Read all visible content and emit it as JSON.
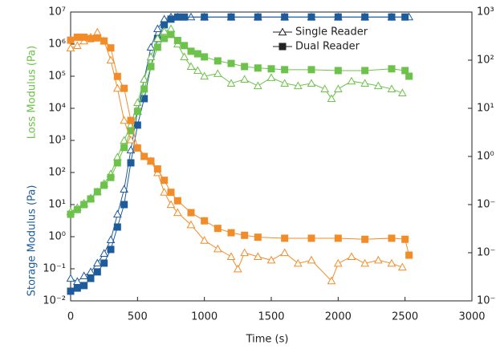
{
  "chart_data": {
    "type": "line",
    "x_label": "Time (s)",
    "y_labels": [
      "Storage Modulus (Pa)",
      "Loss Modulus (Pa)"
    ],
    "y_label_colors": [
      "#1e5b9b",
      "#6cc24a"
    ],
    "xlim": [
      0,
      3000
    ],
    "xticks": [
      0,
      500,
      1000,
      1500,
      2000,
      2500,
      3000
    ],
    "ylim": [
      0.01,
      10000000
    ],
    "log_y": true,
    "yticks": [
      {
        "value": 0.01,
        "label": "10⁻²"
      },
      {
        "value": 0.1,
        "label": "10⁻¹"
      },
      {
        "value": 1,
        "label": "10⁰"
      },
      {
        "value": 10,
        "label": "10¹"
      },
      {
        "value": 100,
        "label": "10²"
      },
      {
        "value": 1000,
        "label": "10³"
      },
      {
        "value": 10000,
        "label": "10⁴"
      },
      {
        "value": 100000,
        "label": "10⁵"
      },
      {
        "value": 1000000,
        "label": "10⁶"
      },
      {
        "value": 10000000,
        "label": "10⁷"
      }
    ],
    "y2lim": [
      0.001,
      1000
    ],
    "y2ticks": [
      {
        "value": 0.001,
        "label": "10⁻³"
      },
      {
        "value": 0.01,
        "label": "10⁻²"
      },
      {
        "value": 0.1,
        "label": "10⁻¹"
      },
      {
        "value": 1,
        "label": "10⁰"
      },
      {
        "value": 10,
        "label": "10¹"
      },
      {
        "value": 100,
        "label": "10²"
      },
      {
        "value": 1000,
        "label": "10³"
      }
    ],
    "legend": {
      "position": "top-center",
      "entries": [
        {
          "label": "Single Reader",
          "marker": "triangle"
        },
        {
          "label": "Dual Reader",
          "marker": "square"
        }
      ]
    },
    "series": [
      {
        "color": "#1e5b9b",
        "marker": "triangle",
        "x": [
          0,
          50,
          100,
          150,
          200,
          250,
          300,
          350,
          400,
          450,
          500,
          550,
          600,
          650,
          700,
          750,
          800,
          900,
          1000,
          1200,
          1400,
          1600,
          1800,
          2000,
          2200,
          2400,
          2530
        ],
        "values": [
          0.05,
          0.04,
          0.06,
          0.08,
          0.15,
          0.3,
          0.8,
          5,
          30,
          500,
          8000,
          80000,
          800000,
          3000000,
          6000000,
          7000000,
          7000000,
          7000000,
          7000000,
          7000000,
          7000000,
          7000000,
          7000000,
          7000000,
          7000000,
          7000000,
          7000000
        ]
      },
      {
        "color": "#1e5b9b",
        "marker": "square",
        "x": [
          0,
          50,
          100,
          150,
          200,
          250,
          300,
          350,
          400,
          450,
          500,
          550,
          600,
          650,
          700,
          750,
          800,
          850,
          1000,
          1200,
          1400,
          1600,
          1800,
          2000,
          2200,
          2400,
          2500
        ],
        "values": [
          0.02,
          0.025,
          0.03,
          0.05,
          0.08,
          0.15,
          0.4,
          2,
          10,
          200,
          3000,
          20000,
          200000,
          1500000,
          4000000,
          6000000,
          7000000,
          7000000,
          7000000,
          7000000,
          7000000,
          7000000,
          7000000,
          7000000,
          7000000,
          7000000,
          7000000
        ]
      },
      {
        "color": "#6cc24a",
        "marker": "triangle",
        "x": [
          0,
          50,
          100,
          150,
          200,
          250,
          300,
          350,
          400,
          450,
          500,
          550,
          600,
          650,
          700,
          750,
          800,
          850,
          900,
          950,
          1000,
          1100,
          1200,
          1300,
          1400,
          1500,
          1600,
          1700,
          1800,
          1900,
          1950,
          2000,
          2100,
          2200,
          2300,
          2400,
          2480
        ],
        "values": [
          6,
          8,
          11,
          16,
          25,
          45,
          90,
          300,
          1000,
          3000,
          15000,
          80000,
          400000,
          1500000,
          2500000,
          3000000,
          1000000,
          400000,
          200000,
          150000,
          100000,
          120000,
          60000,
          80000,
          50000,
          90000,
          60000,
          50000,
          60000,
          40000,
          20000,
          40000,
          70000,
          60000,
          50000,
          40000,
          30000
        ]
      },
      {
        "color": "#6cc24a",
        "marker": "square",
        "x": [
          0,
          50,
          100,
          150,
          200,
          250,
          300,
          350,
          400,
          450,
          500,
          550,
          600,
          650,
          700,
          750,
          800,
          850,
          900,
          950,
          1000,
          1100,
          1200,
          1300,
          1400,
          1500,
          1600,
          1800,
          2000,
          2200,
          2400,
          2500,
          2530
        ],
        "values": [
          5,
          7,
          10,
          15,
          25,
          40,
          70,
          200,
          600,
          2000,
          8000,
          40000,
          200000,
          800000,
          1500000,
          2000000,
          1300000,
          900000,
          600000,
          500000,
          400000,
          300000,
          250000,
          200000,
          180000,
          170000,
          160000,
          160000,
          150000,
          150000,
          170000,
          150000,
          100000
        ]
      },
      {
        "color": "#f28c28",
        "marker": "triangle",
        "axis": "y2",
        "x": [
          0,
          50,
          100,
          150,
          200,
          250,
          300,
          350,
          400,
          450,
          500,
          600,
          650,
          700,
          750,
          800,
          900,
          1000,
          1100,
          1200,
          1250,
          1300,
          1400,
          1500,
          1600,
          1700,
          1800,
          1950,
          2000,
          2100,
          2200,
          2300,
          2400,
          2480
        ],
        "values": [
          178,
          200,
          250,
          300,
          380,
          250,
          100,
          26,
          5.6,
          2.2,
          1.5,
          0.8,
          0.46,
          0.18,
          0.1,
          0.068,
          0.038,
          0.018,
          0.012,
          0.0083,
          0.0046,
          0.01,
          0.0083,
          0.007,
          0.01,
          0.006,
          0.007,
          0.0026,
          0.006,
          0.0083,
          0.006,
          0.007,
          0.006,
          0.005
        ]
      },
      {
        "color": "#f28c28",
        "marker": "square",
        "axis": "y2",
        "x": [
          0,
          50,
          100,
          150,
          200,
          250,
          300,
          350,
          400,
          450,
          500,
          550,
          600,
          650,
          700,
          750,
          800,
          900,
          1000,
          1100,
          1200,
          1300,
          1400,
          1600,
          1800,
          2000,
          2200,
          2400,
          2500,
          2530
        ],
        "values": [
          260,
          300,
          300,
          280,
          290,
          250,
          180,
          46,
          26,
          5.6,
          1.5,
          1.0,
          0.8,
          0.55,
          0.32,
          0.18,
          0.12,
          0.068,
          0.046,
          0.032,
          0.026,
          0.023,
          0.021,
          0.02,
          0.02,
          0.02,
          0.019,
          0.02,
          0.019,
          0.0089
        ]
      }
    ]
  }
}
